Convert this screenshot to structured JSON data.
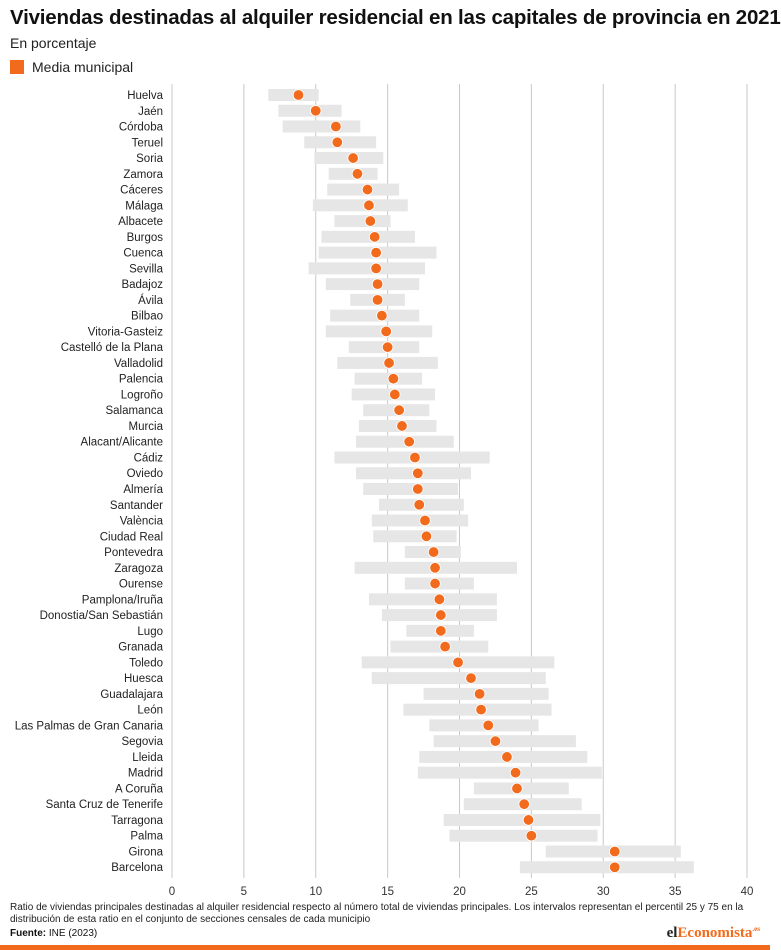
{
  "title": "Viviendas destinadas al alquiler residencial en las capitales de provincia en 2021",
  "subtitle": "En porcentaje",
  "legend": {
    "label": "Media municipal",
    "color": "#f26a1b"
  },
  "colors": {
    "accent": "#f26a1b",
    "range_bar": "#e6e6e6",
    "grid": "#c8c8c8"
  },
  "footnote": "Ratio de viviendas principales destinadas al alquiler residencial respecto al número total de viviendas principales. Los intervalos representan el percentil 25 y 75 en la distribución de esta ratio en el conjunto de secciones censales de cada municipio",
  "source": {
    "label": "Fuente:",
    "text": "INE (2023)"
  },
  "brand": {
    "part1": "el",
    "part2": "Economista",
    "part3": ".es"
  },
  "chart_data": {
    "type": "range_dot",
    "title": "Viviendas destinadas al alquiler residencial en las capitales de provincia en 2021",
    "subtitle": "En porcentaje",
    "xlim": [
      0,
      40
    ],
    "xticks": [
      0,
      5,
      10,
      15,
      20,
      25,
      30,
      35,
      40
    ],
    "grid": "vertical",
    "legend_position": "top-left",
    "series": [
      {
        "name": "Media municipal",
        "field": "mean"
      },
      {
        "name": "",
        "field": "p25-p75"
      }
    ],
    "categories": [
      {
        "city": "Huelva",
        "p25": 6.7,
        "p75": 10.2,
        "mean": 8.8
      },
      {
        "city": "Jaén",
        "p25": 7.4,
        "p75": 11.8,
        "mean": 10.0
      },
      {
        "city": "Córdoba",
        "p25": 7.7,
        "p75": 13.1,
        "mean": 11.4
      },
      {
        "city": "Teruel",
        "p25": 9.2,
        "p75": 14.2,
        "mean": 11.5
      },
      {
        "city": "Soria",
        "p25": 9.9,
        "p75": 14.7,
        "mean": 12.6
      },
      {
        "city": "Zamora",
        "p25": 10.9,
        "p75": 14.3,
        "mean": 12.9
      },
      {
        "city": "Cáceres",
        "p25": 10.8,
        "p75": 15.8,
        "mean": 13.6
      },
      {
        "city": "Málaga",
        "p25": 9.8,
        "p75": 16.4,
        "mean": 13.7
      },
      {
        "city": "Albacete",
        "p25": 11.3,
        "p75": 15.2,
        "mean": 13.8
      },
      {
        "city": "Burgos",
        "p25": 10.4,
        "p75": 16.9,
        "mean": 14.1
      },
      {
        "city": "Cuenca",
        "p25": 10.2,
        "p75": 18.4,
        "mean": 14.2
      },
      {
        "city": "Sevilla",
        "p25": 9.5,
        "p75": 17.6,
        "mean": 14.2
      },
      {
        "city": "Badajoz",
        "p25": 10.7,
        "p75": 17.2,
        "mean": 14.3
      },
      {
        "city": "Ávila",
        "p25": 12.4,
        "p75": 16.2,
        "mean": 14.3
      },
      {
        "city": "Bilbao",
        "p25": 11.0,
        "p75": 17.2,
        "mean": 14.6
      },
      {
        "city": "Vitoria-Gasteiz",
        "p25": 10.7,
        "p75": 18.1,
        "mean": 14.9
      },
      {
        "city": "Castelló de la Plana",
        "p25": 12.3,
        "p75": 17.2,
        "mean": 15.0
      },
      {
        "city": "Valladolid",
        "p25": 11.5,
        "p75": 18.5,
        "mean": 15.1
      },
      {
        "city": "Palencia",
        "p25": 12.7,
        "p75": 17.4,
        "mean": 15.4
      },
      {
        "city": "Logroño",
        "p25": 12.5,
        "p75": 18.3,
        "mean": 15.5
      },
      {
        "city": "Salamanca",
        "p25": 13.3,
        "p75": 17.9,
        "mean": 15.8
      },
      {
        "city": "Murcia",
        "p25": 13.0,
        "p75": 18.4,
        "mean": 16.0
      },
      {
        "city": "Alacant/Alicante",
        "p25": 12.8,
        "p75": 19.6,
        "mean": 16.5
      },
      {
        "city": "Cádiz",
        "p25": 11.3,
        "p75": 22.1,
        "mean": 16.9
      },
      {
        "city": "Oviedo",
        "p25": 12.8,
        "p75": 20.8,
        "mean": 17.1
      },
      {
        "city": "Almería",
        "p25": 13.3,
        "p75": 19.9,
        "mean": 17.1
      },
      {
        "city": "Santander",
        "p25": 14.4,
        "p75": 20.3,
        "mean": 17.2
      },
      {
        "city": "València",
        "p25": 13.9,
        "p75": 20.6,
        "mean": 17.6
      },
      {
        "city": "Ciudad Real",
        "p25": 14.0,
        "p75": 19.8,
        "mean": 17.7
      },
      {
        "city": "Pontevedra",
        "p25": 16.2,
        "p75": 20.1,
        "mean": 18.2
      },
      {
        "city": "Zaragoza",
        "p25": 12.7,
        "p75": 24.0,
        "mean": 18.3
      },
      {
        "city": "Ourense",
        "p25": 16.2,
        "p75": 21.0,
        "mean": 18.3
      },
      {
        "city": "Pamplona/Iruña",
        "p25": 13.7,
        "p75": 22.6,
        "mean": 18.6
      },
      {
        "city": "Donostia/San Sebastián",
        "p25": 14.6,
        "p75": 22.6,
        "mean": 18.7
      },
      {
        "city": "Lugo",
        "p25": 16.3,
        "p75": 21.0,
        "mean": 18.7
      },
      {
        "city": "Granada",
        "p25": 15.2,
        "p75": 22.0,
        "mean": 19.0
      },
      {
        "city": "Toledo",
        "p25": 13.2,
        "p75": 26.6,
        "mean": 19.9
      },
      {
        "city": "Huesca",
        "p25": 13.9,
        "p75": 26.0,
        "mean": 20.8
      },
      {
        "city": "Guadalajara",
        "p25": 17.5,
        "p75": 26.2,
        "mean": 21.4
      },
      {
        "city": "León",
        "p25": 16.1,
        "p75": 26.4,
        "mean": 21.5
      },
      {
        "city": "Las Palmas de Gran Canaria",
        "p25": 17.9,
        "p75": 25.5,
        "mean": 22.0
      },
      {
        "city": "Segovia",
        "p25": 18.2,
        "p75": 28.1,
        "mean": 22.5
      },
      {
        "city": "Lleida",
        "p25": 17.2,
        "p75": 28.9,
        "mean": 23.3
      },
      {
        "city": "Madrid",
        "p25": 17.1,
        "p75": 29.9,
        "mean": 23.9
      },
      {
        "city": "A Coruña",
        "p25": 21.0,
        "p75": 27.6,
        "mean": 24.0
      },
      {
        "city": "Santa Cruz de Tenerife",
        "p25": 20.3,
        "p75": 28.5,
        "mean": 24.5
      },
      {
        "city": "Tarragona",
        "p25": 18.9,
        "p75": 29.8,
        "mean": 24.8
      },
      {
        "city": "Palma",
        "p25": 19.3,
        "p75": 29.6,
        "mean": 25.0
      },
      {
        "city": "Girona",
        "p25": 26.0,
        "p75": 35.4,
        "mean": 30.8
      },
      {
        "city": "Barcelona",
        "p25": 24.2,
        "p75": 36.3,
        "mean": 30.8
      }
    ]
  }
}
